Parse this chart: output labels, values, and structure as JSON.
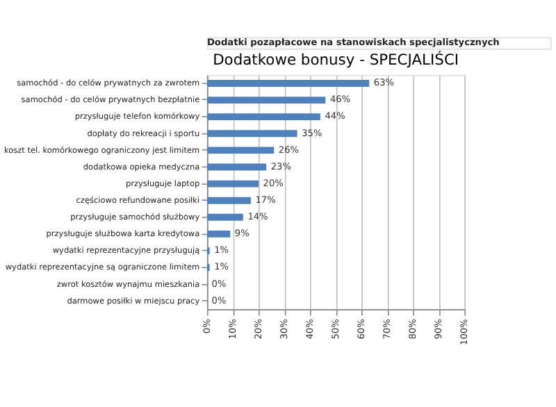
{
  "chart_data": {
    "type": "bar",
    "orientation": "horizontal",
    "title": "Dodatki pozapłacowe na stanowiskach specjalistycznych",
    "subtitle": "Dodatkowe bonusy - SPECJALIŚCI",
    "categories": [
      "samochód - do celów prywatnych za zwrotem",
      "samochód - do celów prywatnych bezpłatnie",
      "przysługuje telefon komórkowy",
      "dopłaty do rekreacji i sportu",
      "koszt tel. komórkowego ograniczony jest limitem",
      "dodatkowa opieka medyczna",
      "przysługuje laptop",
      "częściowo refundowane posiłki",
      "przysługuje samochód służbowy",
      "przysługuje służbowa karta kredytowa",
      "wydatki reprezentacyjne przysługują",
      "wydatki reprezentacyjne są ograniczone limitem",
      "zwrot kosztów wynajmu mieszkania",
      "darmowe posiłki w miejscu pracy"
    ],
    "values": [
      63,
      46,
      44,
      35,
      26,
      23,
      20,
      17,
      14,
      9,
      1,
      1,
      0,
      0
    ],
    "value_labels": [
      "63%",
      "46%",
      "44%",
      "35%",
      "26%",
      "23%",
      "20%",
      "17%",
      "14%",
      "9%",
      "1%",
      "1%",
      "0%",
      "0%"
    ],
    "color": "#4f81bd",
    "xlim": [
      0,
      100
    ],
    "xticks": [
      {
        "value": 0,
        "label": "0%"
      },
      {
        "value": 10,
        "label": "10%"
      },
      {
        "value": 20,
        "label": "20%"
      },
      {
        "value": 30,
        "label": "30%"
      },
      {
        "value": 40,
        "label": "40%"
      },
      {
        "value": 50,
        "label": "50%"
      },
      {
        "value": 60,
        "label": "60%"
      },
      {
        "value": 70,
        "label": "70%"
      },
      {
        "value": 80,
        "label": "80%"
      },
      {
        "value": 90,
        "label": "90%"
      },
      {
        "value": 100,
        "label": "100%"
      }
    ],
    "grid": "x"
  }
}
